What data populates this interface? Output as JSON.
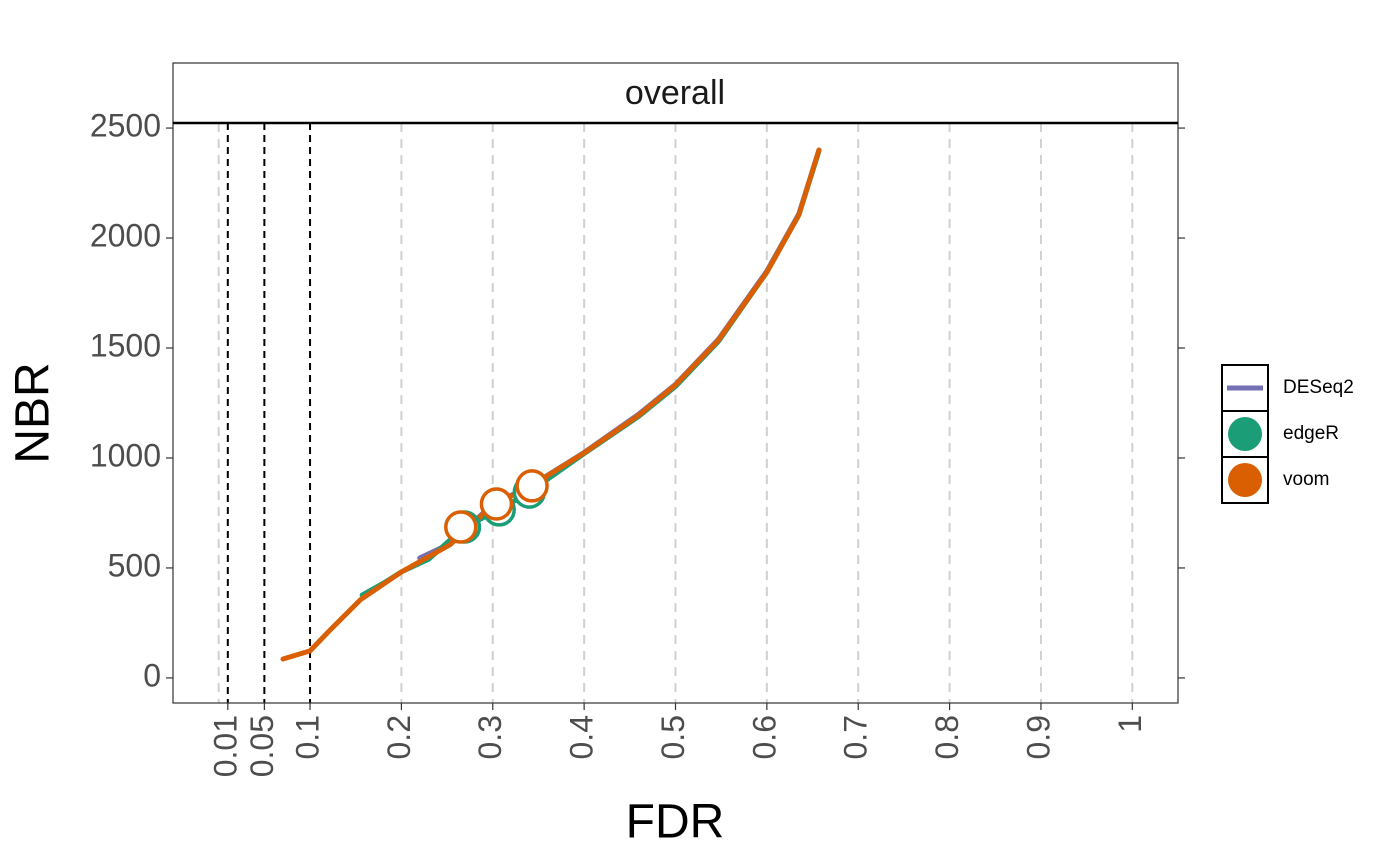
{
  "chart_data": {
    "type": "line",
    "strip": "overall",
    "xlabel": "FDR",
    "ylabel": "NBR",
    "xlim": [
      -0.05,
      1.05
    ],
    "ylim": [
      -114,
      2523
    ],
    "xticks": [
      0.01,
      0.05,
      0.1,
      0.2,
      0.3,
      0.4,
      0.5,
      0.6,
      0.7,
      0.8,
      0.9,
      1
    ],
    "yticks": [
      0,
      500,
      1000,
      1500,
      2000,
      2500
    ],
    "xgrid": [
      0,
      0.2,
      0.3,
      0.4,
      0.5,
      0.6,
      0.7,
      0.8,
      0.9,
      1
    ],
    "thresholds": [
      0.01,
      0.05,
      0.1
    ],
    "legend": "right",
    "series": [
      {
        "name": "DESeq2",
        "color": "#7570b3",
        "x": [
          0.22,
          0.253,
          0.3,
          0.34,
          0.4,
          0.46,
          0.5,
          0.547,
          0.6,
          0.635,
          0.657
        ],
        "values": [
          545,
          610,
          790,
          870,
          1025,
          1200,
          1335,
          1540,
          1850,
          2110,
          2400
        ]
      },
      {
        "name": "edgeR",
        "color": "#1b9e77",
        "x": [
          0.157,
          0.18,
          0.2,
          0.23,
          0.269,
          0.307,
          0.34,
          0.4,
          0.46,
          0.5,
          0.547,
          0.6,
          0.635,
          0.657
        ],
        "values": [
          377,
          430,
          482,
          540,
          686,
          764,
          845,
          1020,
          1190,
          1325,
          1530,
          1845,
          2105,
          2395
        ],
        "points_x": [
          0.269,
          0.307,
          0.34
        ],
        "points_y": [
          686,
          764,
          845
        ]
      },
      {
        "name": "voom",
        "color": "#d95f02",
        "x": [
          0.0704,
          0.1,
          0.122,
          0.155,
          0.2,
          0.253,
          0.3,
          0.34,
          0.4,
          0.46,
          0.5,
          0.547,
          0.6,
          0.635,
          0.657
        ],
        "values": [
          86,
          123,
          218,
          355,
          482,
          605,
          786,
          868,
          1023,
          1195,
          1332,
          1536,
          1845,
          2105,
          2400
        ],
        "points_x": [
          0.265,
          0.304,
          0.343
        ],
        "points_y": [
          686,
          791,
          873
        ]
      }
    ]
  }
}
